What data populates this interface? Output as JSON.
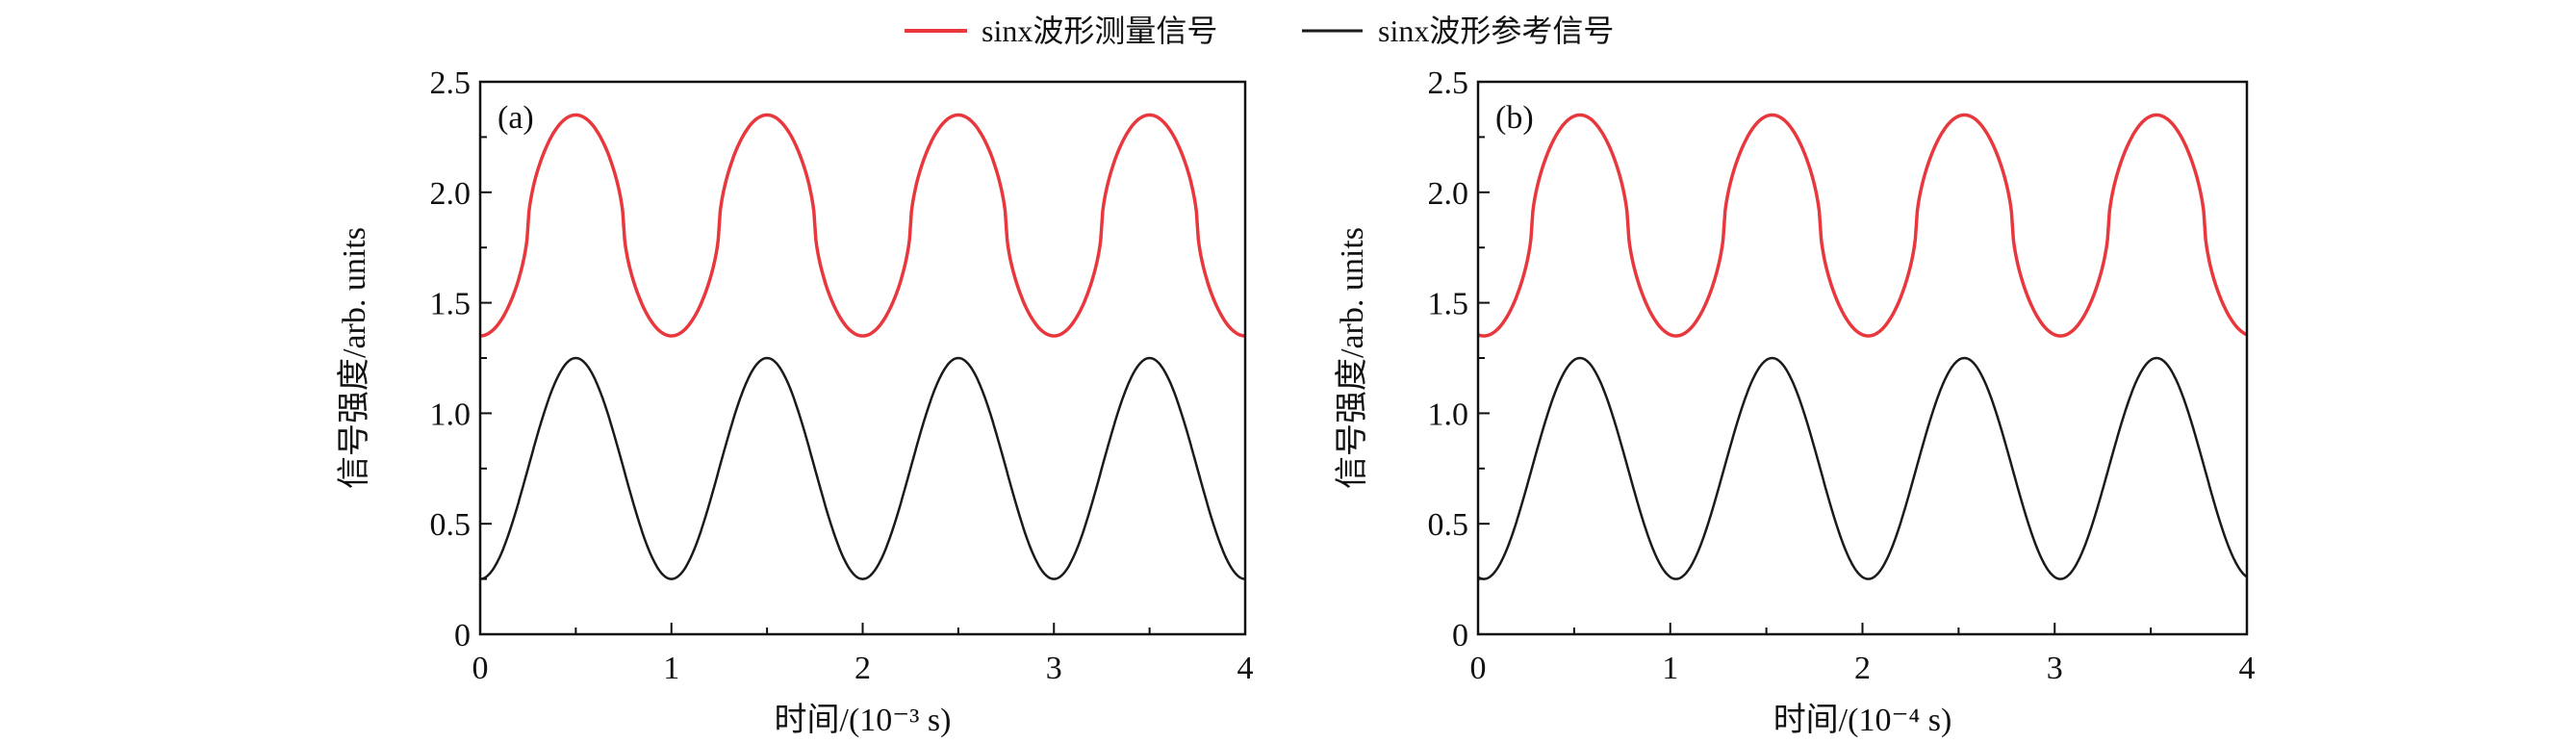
{
  "legend": [
    {
      "label": "sinx波形测量信号",
      "color": "#e8383d"
    },
    {
      "label": "sinx波形参考信号",
      "color": "#1a1a1a"
    }
  ],
  "chart_data": [
    {
      "type": "line",
      "panel_label": "(a)",
      "xlabel": "时间/(10⁻³ s)",
      "ylabel": "信号强度/arb. units",
      "xlim": [
        0,
        4
      ],
      "ylim": [
        0,
        2.5
      ],
      "xticks": [
        "0",
        "1",
        "2",
        "3",
        "4"
      ],
      "yticks": [
        "0",
        "0.5",
        "1.0",
        "1.5",
        "2.0",
        "2.5"
      ],
      "grid": false,
      "series": [
        {
          "name": "sinx波形测量信号",
          "color": "#e8383d",
          "min": 1.35,
          "max": 2.35,
          "period": 1,
          "peak_x": [
            0.5,
            1.5,
            2.5,
            3.5
          ],
          "trough_x": [
            0,
            1,
            2,
            3,
            4
          ],
          "shape": "flattened"
        },
        {
          "name": "sinx波形参考信号",
          "color": "#1a1a1a",
          "min": 0.25,
          "max": 1.25,
          "period": 1,
          "peak_x": [
            0.5,
            1.5,
            2.5,
            3.5
          ],
          "trough_x": [
            0,
            1,
            2,
            3,
            4
          ],
          "shape": "sine"
        }
      ]
    },
    {
      "type": "line",
      "panel_label": "(b)",
      "xlabel": "时间/(10⁻⁴ s)",
      "ylabel": "信号强度/arb. units",
      "xlim": [
        0,
        4
      ],
      "ylim": [
        0,
        2.5
      ],
      "xticks": [
        "0",
        "1",
        "2",
        "3",
        "4"
      ],
      "yticks": [
        "0",
        "0.5",
        "1.0",
        "1.5",
        "2.0",
        "2.5"
      ],
      "grid": false,
      "series": [
        {
          "name": "sinx波形测量信号",
          "color": "#e8383d",
          "min": 1.35,
          "max": 2.35,
          "period": 1,
          "peak_x": [
            0.53,
            1.53,
            2.53,
            3.53
          ],
          "trough_x": [
            0.03,
            1.03,
            2.03,
            3.03
          ],
          "shape": "flattened"
        },
        {
          "name": "sinx波形参考信号",
          "color": "#1a1a1a",
          "min": 0.25,
          "max": 1.25,
          "period": 1,
          "peak_x": [
            0.53,
            1.53,
            2.53,
            3.53
          ],
          "trough_x": [
            0.03,
            1.03,
            2.03,
            3.03
          ],
          "shape": "sine"
        }
      ]
    }
  ]
}
